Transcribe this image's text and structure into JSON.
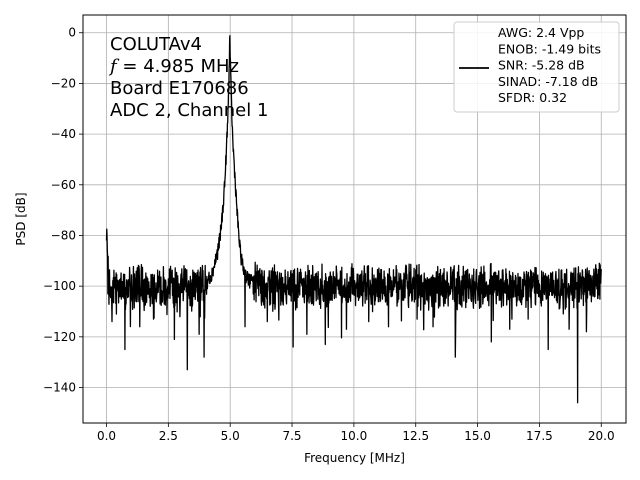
{
  "chart_data": {
    "type": "line",
    "title": "",
    "xlabel": "Frequency [MHz]",
    "ylabel": "PSD [dB]",
    "xlim": [
      -0.95,
      21.0
    ],
    "ylim": [
      -154,
      7
    ],
    "xticks": [
      0.0,
      2.5,
      5.0,
      7.5,
      10.0,
      12.5,
      15.0,
      17.5,
      20.0
    ],
    "xtick_labels": [
      "0.0",
      "2.5",
      "5.0",
      "7.5",
      "10.0",
      "12.5",
      "15.0",
      "17.5",
      "20.0"
    ],
    "yticks": [
      0,
      -20,
      -40,
      -60,
      -80,
      -100,
      -120,
      -140
    ],
    "ytick_labels": [
      "0",
      "−20",
      "−40",
      "−60",
      "−80",
      "−100",
      "−120",
      "−140"
    ],
    "grid": true,
    "annotation_lines": [
      "COLUTAv4",
      "f = 4.985 MHz",
      "Board E170686",
      "ADC 2, Channel 1"
    ],
    "legend": {
      "placement": "top-right",
      "lines": [
        "AWG: 2.4 Vpp",
        "ENOB: -1.49 bits",
        "SNR: -5.28 dB",
        "SINAD: -7.18 dB",
        "SFDR: 0.32"
      ]
    },
    "series": [
      {
        "color": "#000000",
        "description_peak_mhz": 4.985,
        "x": [
          0.0,
          0.03,
          0.06,
          0.1,
          0.2,
          0.3,
          0.4,
          0.5,
          0.6,
          0.7,
          0.8,
          0.9,
          1.0,
          1.2,
          1.4,
          1.6,
          1.8,
          2.0,
          2.2,
          2.4,
          2.6,
          2.8,
          3.0,
          3.2,
          3.4,
          3.6,
          3.8,
          4.0,
          4.2,
          4.3,
          4.4,
          4.5,
          4.6,
          4.7,
          4.8,
          4.9,
          4.95,
          4.985,
          5.02,
          5.1,
          5.2,
          5.3,
          5.4,
          5.5,
          5.6,
          5.7,
          5.8,
          6.0,
          6.5,
          7.0,
          7.5,
          8.0,
          8.5,
          9.0,
          9.5,
          10.0,
          10.5,
          11.0,
          11.5,
          12.0,
          12.5,
          13.0,
          13.5,
          14.0,
          14.5,
          15.0,
          15.5,
          16.0,
          16.5,
          17.0,
          17.5,
          18.0,
          18.5,
          19.0,
          19.5,
          20.0
        ],
        "y": [
          -82,
          -90,
          -95,
          -99,
          -101,
          -99,
          -100,
          -102,
          -100,
          -99,
          -101,
          -100,
          -101,
          -100,
          -99,
          -101,
          -100,
          -100,
          -99,
          -101,
          -100,
          -101,
          -100,
          -99,
          -101,
          -100,
          -99,
          -99,
          -96,
          -94,
          -90,
          -86,
          -80,
          -70,
          -56,
          -35,
          -18,
          0,
          -18,
          -42,
          -58,
          -74,
          -86,
          -92,
          -95,
          -97,
          -98,
          -99,
          -100,
          -101,
          -100,
          -99,
          -100,
          -101,
          -100,
          -100,
          -99,
          -101,
          -100,
          -99,
          -100,
          -101,
          -100,
          -99,
          -101,
          -100,
          -100,
          -99,
          -101,
          -100,
          -99,
          -100,
          -101,
          -100,
          -99,
          -98
        ]
      }
    ],
    "dips": [
      {
        "x": 0.22,
        "y": -114
      },
      {
        "x": 0.4,
        "y": -111
      },
      {
        "x": 0.75,
        "y": -125
      },
      {
        "x": 1.35,
        "y": -116
      },
      {
        "x": 1.9,
        "y": -113
      },
      {
        "x": 2.75,
        "y": -121
      },
      {
        "x": 3.27,
        "y": -133
      },
      {
        "x": 3.75,
        "y": -119
      },
      {
        "x": 3.95,
        "y": -128
      },
      {
        "x": 5.6,
        "y": -116
      },
      {
        "x": 6.5,
        "y": -114
      },
      {
        "x": 7.55,
        "y": -124
      },
      {
        "x": 8.1,
        "y": -119
      },
      {
        "x": 8.85,
        "y": -123
      },
      {
        "x": 9.7,
        "y": -117
      },
      {
        "x": 10.6,
        "y": -114
      },
      {
        "x": 11.4,
        "y": -116
      },
      {
        "x": 12.55,
        "y": -113
      },
      {
        "x": 13.2,
        "y": -116
      },
      {
        "x": 14.1,
        "y": -128
      },
      {
        "x": 15.55,
        "y": -122
      },
      {
        "x": 16.3,
        "y": -117
      },
      {
        "x": 17.05,
        "y": -113
      },
      {
        "x": 17.85,
        "y": -125
      },
      {
        "x": 18.7,
        "y": -117
      },
      {
        "x": 19.05,
        "y": -146
      },
      {
        "x": 19.4,
        "y": -118
      }
    ],
    "noise_band": [
      -111,
      -87
    ]
  }
}
